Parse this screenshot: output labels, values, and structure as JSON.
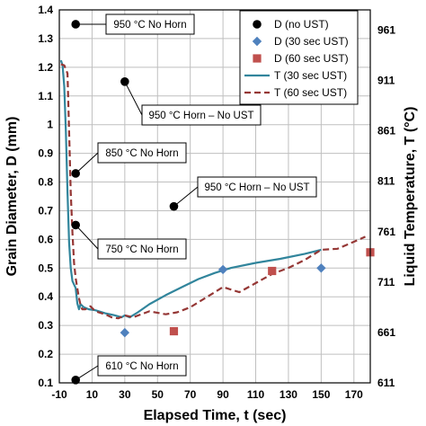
{
  "chart_data": {
    "type": "scatter",
    "xlabel": "Elapsed Time, t (sec)",
    "ylabel": "Grain Diameter, D (mm)",
    "y2label": "Liquid Temperature, T (°C)",
    "xlim": [
      -10,
      180
    ],
    "ylim": [
      0.1,
      1.4
    ],
    "y2lim": [
      611,
      981
    ],
    "x_ticks": [
      -10,
      10,
      30,
      50,
      70,
      90,
      110,
      130,
      150,
      170
    ],
    "y_ticks": [
      0.1,
      0.2,
      0.3,
      0.4,
      0.5,
      0.6,
      0.7,
      0.8,
      0.9,
      1.0,
      1.1,
      1.2,
      1.3,
      1.4
    ],
    "y_tick_labels": [
      "0.1",
      "0.2",
      "0.3",
      "0.4",
      "0.5",
      "0.6",
      "0.7",
      "0.8",
      "0.9",
      "1",
      "1.1",
      "1.2",
      "1.3",
      "1.4"
    ],
    "y2_ticks": [
      611,
      661,
      711,
      761,
      811,
      861,
      911,
      961
    ],
    "grid": true,
    "legend_position": "top-right",
    "colors": {
      "no_ust": "#000000",
      "ust30_points": "#4f81bd",
      "ust60_points": "#c0504d",
      "ust30_line": "#31859c",
      "ust60_line": "#953735"
    },
    "series": [
      {
        "name": "D (no UST)",
        "kind": "points",
        "marker": "circle",
        "color": "#000000",
        "points": [
          [
            0,
            1.35
          ],
          [
            0,
            0.83
          ],
          [
            0,
            0.65
          ],
          [
            0,
            0.11
          ],
          [
            30,
            1.15
          ],
          [
            60,
            0.715
          ]
        ]
      },
      {
        "name": "D (30 sec UST)",
        "kind": "points",
        "marker": "diamond",
        "color": "#4f81bd",
        "points": [
          [
            30,
            0.275
          ],
          [
            90,
            0.495
          ],
          [
            150,
            0.5
          ]
        ]
      },
      {
        "name": "D (60 sec UST)",
        "kind": "points",
        "marker": "square",
        "color": "#c0504d",
        "points": [
          [
            60,
            0.28
          ],
          [
            120,
            0.49
          ],
          [
            180,
            0.555
          ]
        ]
      },
      {
        "name": "T (30 sec UST)",
        "kind": "line",
        "axis": "right",
        "dash": false,
        "color": "#31859c",
        "points": [
          [
            -9,
            931
          ],
          [
            -8,
            926
          ],
          [
            -7,
            905
          ],
          [
            -6,
            860
          ],
          [
            -5,
            800
          ],
          [
            -4,
            750
          ],
          [
            -3,
            725
          ],
          [
            -2,
            712
          ],
          [
            0,
            705
          ],
          [
            1,
            690
          ],
          [
            2,
            684
          ],
          [
            3,
            689
          ],
          [
            5,
            686
          ],
          [
            8,
            684
          ],
          [
            12,
            683
          ],
          [
            18,
            680
          ],
          [
            24,
            678
          ],
          [
            28,
            676
          ],
          [
            30,
            678
          ],
          [
            33,
            676
          ],
          [
            38,
            681
          ],
          [
            45,
            689
          ],
          [
            55,
            698
          ],
          [
            65,
            706
          ],
          [
            75,
            714
          ],
          [
            85,
            720
          ],
          [
            95,
            725
          ],
          [
            110,
            730
          ],
          [
            125,
            734
          ],
          [
            140,
            739
          ],
          [
            150,
            743
          ]
        ]
      },
      {
        "name": "T (60 sec UST)",
        "kind": "line",
        "axis": "right",
        "dash": true,
        "color": "#953735",
        "points": [
          [
            -9,
            927
          ],
          [
            -7,
            926
          ],
          [
            -6,
            922
          ],
          [
            -5,
            918
          ],
          [
            -4,
            860
          ],
          [
            -3,
            800
          ],
          [
            -2,
            760
          ],
          [
            -1,
            730
          ],
          [
            0,
            715
          ],
          [
            1,
            705
          ],
          [
            2,
            695
          ],
          [
            3,
            688
          ],
          [
            4,
            684
          ],
          [
            6,
            684
          ],
          [
            9,
            687
          ],
          [
            12,
            682
          ],
          [
            18,
            679
          ],
          [
            22,
            676
          ],
          [
            26,
            675
          ],
          [
            30,
            678
          ],
          [
            35,
            676
          ],
          [
            40,
            679
          ],
          [
            45,
            682
          ],
          [
            55,
            679
          ],
          [
            62,
            681
          ],
          [
            70,
            686
          ],
          [
            80,
            696
          ],
          [
            90,
            706
          ],
          [
            100,
            701
          ],
          [
            110,
            710
          ],
          [
            120,
            719
          ],
          [
            130,
            725
          ],
          [
            140,
            733
          ],
          [
            150,
            743
          ],
          [
            160,
            744
          ],
          [
            170,
            751
          ],
          [
            177,
            756
          ]
        ]
      }
    ],
    "annotations": [
      {
        "text": "950 °C No Horn",
        "point": [
          0,
          1.35
        ]
      },
      {
        "text": "950 °C Horn – No UST",
        "point": [
          30,
          1.15
        ]
      },
      {
        "text": "850 °C No Horn",
        "point": [
          0,
          0.83
        ]
      },
      {
        "text": "950 °C Horn – No UST",
        "point": [
          60,
          0.715
        ]
      },
      {
        "text": "750 °C No Horn",
        "point": [
          0,
          0.65
        ]
      },
      {
        "text": "610 °C No Horn",
        "point": [
          0,
          0.11
        ]
      }
    ]
  }
}
